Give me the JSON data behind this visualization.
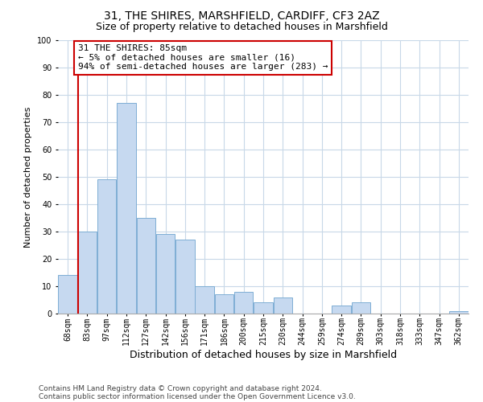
{
  "title": "31, THE SHIRES, MARSHFIELD, CARDIFF, CF3 2AZ",
  "subtitle": "Size of property relative to detached houses in Marshfield",
  "xlabel": "Distribution of detached houses by size in Marshfield",
  "ylabel": "Number of detached properties",
  "bar_labels": [
    "68sqm",
    "83sqm",
    "97sqm",
    "112sqm",
    "127sqm",
    "142sqm",
    "156sqm",
    "171sqm",
    "186sqm",
    "200sqm",
    "215sqm",
    "230sqm",
    "244sqm",
    "259sqm",
    "274sqm",
    "289sqm",
    "303sqm",
    "318sqm",
    "333sqm",
    "347sqm",
    "362sqm"
  ],
  "bar_values": [
    14,
    30,
    49,
    77,
    35,
    29,
    27,
    10,
    7,
    8,
    4,
    6,
    0,
    0,
    3,
    4,
    0,
    0,
    0,
    0,
    1
  ],
  "bar_color": "#c6d9f0",
  "bar_edge_color": "#7eaed4",
  "vline_x": 1.0,
  "vline_color": "#cc0000",
  "annotation_title": "31 THE SHIRES: 85sqm",
  "annotation_line1": "← 5% of detached houses are smaller (16)",
  "annotation_line2": "94% of semi-detached houses are larger (283) →",
  "annotation_box_color": "#ffffff",
  "annotation_box_edge": "#cc0000",
  "ylim": [
    0,
    100
  ],
  "yticks": [
    0,
    10,
    20,
    30,
    40,
    50,
    60,
    70,
    80,
    90,
    100
  ],
  "footnote1": "Contains HM Land Registry data © Crown copyright and database right 2024.",
  "footnote2": "Contains public sector information licensed under the Open Government Licence v3.0.",
  "bg_color": "#ffffff",
  "grid_color": "#c8d8e8",
  "title_fontsize": 10,
  "subtitle_fontsize": 9,
  "xlabel_fontsize": 9,
  "ylabel_fontsize": 8,
  "tick_fontsize": 7,
  "annotation_fontsize": 8,
  "footnote_fontsize": 6.5
}
